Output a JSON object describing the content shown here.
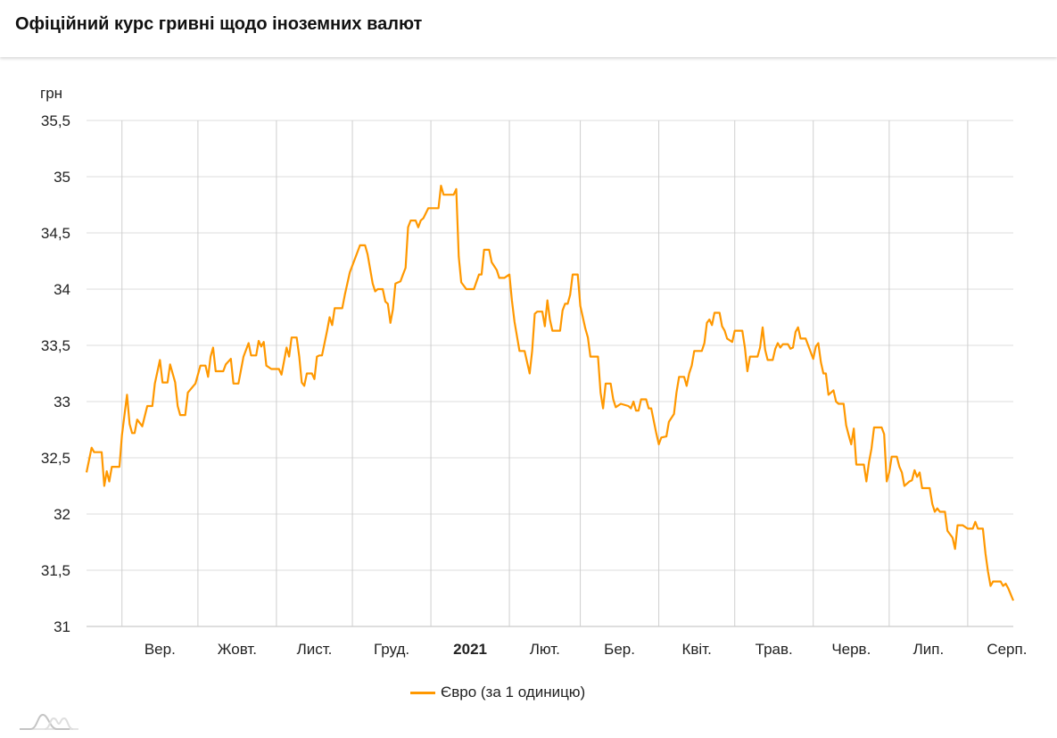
{
  "title": "Офіційний курс гривні щодо іноземних валют",
  "colors": {
    "series": "#ff9800",
    "grid": "#dcdcdc",
    "vgrid": "#cfcfcf"
  },
  "chart_data": {
    "type": "line",
    "title": "",
    "xlabel": "",
    "ylabel": "грн",
    "ylim": [
      31,
      35.5
    ],
    "xlim": [
      "2020-08-18",
      "2021-08-19"
    ],
    "grid": true,
    "legend_position": "bottom",
    "yticks": [
      "31",
      "31,5",
      "32",
      "32,5",
      "33",
      "33,5",
      "34",
      "34,5",
      "35",
      "35,5"
    ],
    "xticks": [
      {
        "label": "Вер.",
        "bold": false
      },
      {
        "label": "Жовт.",
        "bold": false
      },
      {
        "label": "Лист.",
        "bold": false
      },
      {
        "label": "Груд.",
        "bold": false
      },
      {
        "label": "2021",
        "bold": true
      },
      {
        "label": "Лют.",
        "bold": false
      },
      {
        "label": "Бер.",
        "bold": false
      },
      {
        "label": "Квіт.",
        "bold": false
      },
      {
        "label": "Трав.",
        "bold": false
      },
      {
        "label": "Черв.",
        "bold": false
      },
      {
        "label": "Лип.",
        "bold": false
      },
      {
        "label": "Серп.",
        "bold": false
      }
    ],
    "series": [
      {
        "name": "Євро (за 1 одиницю)",
        "points": [
          [
            "2020-08-18",
            32.37
          ],
          [
            "2020-08-20",
            32.59
          ],
          [
            "2020-08-21",
            32.55
          ],
          [
            "2020-08-24",
            32.55
          ],
          [
            "2020-08-25",
            32.25
          ],
          [
            "2020-08-26",
            32.38
          ],
          [
            "2020-08-27",
            32.29
          ],
          [
            "2020-08-28",
            32.42
          ],
          [
            "2020-08-31",
            32.42
          ],
          [
            "2020-09-01",
            32.7
          ],
          [
            "2020-09-03",
            33.06
          ],
          [
            "2020-09-04",
            32.8
          ],
          [
            "2020-09-05",
            32.72
          ],
          [
            "2020-09-06",
            32.72
          ],
          [
            "2020-09-07",
            32.84
          ],
          [
            "2020-09-09",
            32.78
          ],
          [
            "2020-09-11",
            32.96
          ],
          [
            "2020-09-13",
            32.96
          ],
          [
            "2020-09-14",
            33.16
          ],
          [
            "2020-09-16",
            33.37
          ],
          [
            "2020-09-17",
            33.17
          ],
          [
            "2020-09-19",
            33.17
          ],
          [
            "2020-09-20",
            33.33
          ],
          [
            "2020-09-22",
            33.17
          ],
          [
            "2020-09-23",
            32.96
          ],
          [
            "2020-09-24",
            32.88
          ],
          [
            "2020-09-26",
            32.88
          ],
          [
            "2020-09-27",
            33.08
          ],
          [
            "2020-09-30",
            33.16
          ],
          [
            "2020-10-02",
            33.32
          ],
          [
            "2020-10-04",
            33.32
          ],
          [
            "2020-10-05",
            33.22
          ],
          [
            "2020-10-06",
            33.4
          ],
          [
            "2020-10-07",
            33.48
          ],
          [
            "2020-10-08",
            33.27
          ],
          [
            "2020-10-11",
            33.27
          ],
          [
            "2020-10-12",
            33.33
          ],
          [
            "2020-10-14",
            33.38
          ],
          [
            "2020-10-15",
            33.16
          ],
          [
            "2020-10-17",
            33.16
          ],
          [
            "2020-10-19",
            33.4
          ],
          [
            "2020-10-21",
            33.52
          ],
          [
            "2020-10-22",
            33.41
          ],
          [
            "2020-10-24",
            33.41
          ],
          [
            "2020-10-25",
            33.54
          ],
          [
            "2020-10-26",
            33.49
          ],
          [
            "2020-10-27",
            33.53
          ],
          [
            "2020-10-28",
            33.32
          ],
          [
            "2020-10-30",
            33.29
          ],
          [
            "2020-11-02",
            33.29
          ],
          [
            "2020-11-03",
            33.24
          ],
          [
            "2020-11-05",
            33.48
          ],
          [
            "2020-11-06",
            33.4
          ],
          [
            "2020-11-07",
            33.57
          ],
          [
            "2020-11-09",
            33.57
          ],
          [
            "2020-11-10",
            33.4
          ],
          [
            "2020-11-11",
            33.17
          ],
          [
            "2020-11-12",
            33.14
          ],
          [
            "2020-11-13",
            33.25
          ],
          [
            "2020-11-15",
            33.25
          ],
          [
            "2020-11-16",
            33.2
          ],
          [
            "2020-11-17",
            33.4
          ],
          [
            "2020-11-18",
            33.41
          ],
          [
            "2020-11-19",
            33.41
          ],
          [
            "2020-11-21",
            33.63
          ],
          [
            "2020-11-22",
            33.75
          ],
          [
            "2020-11-23",
            33.68
          ],
          [
            "2020-11-24",
            33.83
          ],
          [
            "2020-11-27",
            33.83
          ],
          [
            "2020-11-28",
            33.95
          ],
          [
            "2020-11-30",
            34.15
          ],
          [
            "2020-12-02",
            34.27
          ],
          [
            "2020-12-04",
            34.39
          ],
          [
            "2020-12-06",
            34.39
          ],
          [
            "2020-12-07",
            34.31
          ],
          [
            "2020-12-09",
            34.05
          ],
          [
            "2020-12-10",
            33.98
          ],
          [
            "2020-12-11",
            34.0
          ],
          [
            "2020-12-13",
            34.0
          ],
          [
            "2020-12-14",
            33.89
          ],
          [
            "2020-12-15",
            33.87
          ],
          [
            "2020-12-16",
            33.7
          ],
          [
            "2020-12-17",
            33.82
          ],
          [
            "2020-12-18",
            34.05
          ],
          [
            "2020-12-20",
            34.07
          ],
          [
            "2020-12-21",
            34.13
          ],
          [
            "2020-12-22",
            34.19
          ],
          [
            "2020-12-23",
            34.55
          ],
          [
            "2020-12-24",
            34.61
          ],
          [
            "2020-12-26",
            34.61
          ],
          [
            "2020-12-27",
            34.55
          ],
          [
            "2020-12-28",
            34.61
          ],
          [
            "2020-12-29",
            34.63
          ],
          [
            "2020-12-31",
            34.72
          ],
          [
            "2021-01-04",
            34.72
          ],
          [
            "2021-01-05",
            34.92
          ],
          [
            "2021-01-06",
            34.84
          ],
          [
            "2021-01-10",
            34.84
          ],
          [
            "2021-01-11",
            34.89
          ],
          [
            "2021-01-12",
            34.29
          ],
          [
            "2021-01-13",
            34.06
          ],
          [
            "2021-01-15",
            34.0
          ],
          [
            "2021-01-18",
            34.0
          ],
          [
            "2021-01-20",
            34.13
          ],
          [
            "2021-01-21",
            34.13
          ],
          [
            "2021-01-22",
            34.35
          ],
          [
            "2021-01-24",
            34.35
          ],
          [
            "2021-01-25",
            34.24
          ],
          [
            "2021-01-27",
            34.17
          ],
          [
            "2021-01-28",
            34.1
          ],
          [
            "2021-01-30",
            34.1
          ],
          [
            "2021-02-01",
            34.13
          ],
          [
            "2021-02-02",
            33.9
          ],
          [
            "2021-02-03",
            33.71
          ],
          [
            "2021-02-05",
            33.45
          ],
          [
            "2021-02-07",
            33.45
          ],
          [
            "2021-02-09",
            33.25
          ],
          [
            "2021-02-10",
            33.45
          ],
          [
            "2021-02-11",
            33.78
          ],
          [
            "2021-02-12",
            33.8
          ],
          [
            "2021-02-14",
            33.8
          ],
          [
            "2021-02-15",
            33.67
          ],
          [
            "2021-02-16",
            33.9
          ],
          [
            "2021-02-17",
            33.73
          ],
          [
            "2021-02-18",
            33.63
          ],
          [
            "2021-02-21",
            33.63
          ],
          [
            "2021-02-22",
            33.81
          ],
          [
            "2021-02-23",
            33.87
          ],
          [
            "2021-02-24",
            33.87
          ],
          [
            "2021-02-25",
            33.95
          ],
          [
            "2021-02-26",
            34.13
          ],
          [
            "2021-02-28",
            34.13
          ],
          [
            "2021-03-01",
            33.85
          ],
          [
            "2021-03-03",
            33.65
          ],
          [
            "2021-03-04",
            33.57
          ],
          [
            "2021-03-05",
            33.4
          ],
          [
            "2021-03-08",
            33.4
          ],
          [
            "2021-03-09",
            33.08
          ],
          [
            "2021-03-10",
            32.94
          ],
          [
            "2021-03-11",
            33.16
          ],
          [
            "2021-03-13",
            33.16
          ],
          [
            "2021-03-14",
            33.02
          ],
          [
            "2021-03-15",
            32.95
          ],
          [
            "2021-03-17",
            32.98
          ],
          [
            "2021-03-20",
            32.96
          ],
          [
            "2021-03-21",
            32.94
          ],
          [
            "2021-03-22",
            33.0
          ],
          [
            "2021-03-23",
            32.92
          ],
          [
            "2021-03-24",
            32.92
          ],
          [
            "2021-03-25",
            33.02
          ],
          [
            "2021-03-27",
            33.02
          ],
          [
            "2021-03-28",
            32.94
          ],
          [
            "2021-03-29",
            32.94
          ],
          [
            "2021-03-31",
            32.72
          ],
          [
            "2021-04-01",
            32.62
          ],
          [
            "2021-04-02",
            32.68
          ],
          [
            "2021-04-04",
            32.69
          ],
          [
            "2021-04-05",
            32.82
          ],
          [
            "2021-04-07",
            32.89
          ],
          [
            "2021-04-08",
            33.08
          ],
          [
            "2021-04-09",
            33.22
          ],
          [
            "2021-04-11",
            33.22
          ],
          [
            "2021-04-12",
            33.14
          ],
          [
            "2021-04-13",
            33.25
          ],
          [
            "2021-04-14",
            33.32
          ],
          [
            "2021-04-15",
            33.45
          ],
          [
            "2021-04-18",
            33.45
          ],
          [
            "2021-04-19",
            33.52
          ],
          [
            "2021-04-20",
            33.7
          ],
          [
            "2021-04-21",
            33.73
          ],
          [
            "2021-04-22",
            33.68
          ],
          [
            "2021-04-23",
            33.79
          ],
          [
            "2021-04-25",
            33.79
          ],
          [
            "2021-04-26",
            33.67
          ],
          [
            "2021-04-27",
            33.63
          ],
          [
            "2021-04-28",
            33.56
          ],
          [
            "2021-04-30",
            33.53
          ],
          [
            "2021-05-01",
            33.63
          ],
          [
            "2021-05-04",
            33.63
          ],
          [
            "2021-05-05",
            33.48
          ],
          [
            "2021-05-06",
            33.27
          ],
          [
            "2021-05-07",
            33.4
          ],
          [
            "2021-05-10",
            33.4
          ],
          [
            "2021-05-11",
            33.48
          ],
          [
            "2021-05-12",
            33.66
          ],
          [
            "2021-05-13",
            33.46
          ],
          [
            "2021-05-14",
            33.37
          ],
          [
            "2021-05-16",
            33.37
          ],
          [
            "2021-05-17",
            33.47
          ],
          [
            "2021-05-18",
            33.52
          ],
          [
            "2021-05-19",
            33.48
          ],
          [
            "2021-05-20",
            33.51
          ],
          [
            "2021-05-22",
            33.51
          ],
          [
            "2021-05-23",
            33.47
          ],
          [
            "2021-05-24",
            33.48
          ],
          [
            "2021-05-25",
            33.62
          ],
          [
            "2021-05-26",
            33.66
          ],
          [
            "2021-05-27",
            33.56
          ],
          [
            "2021-05-29",
            33.56
          ],
          [
            "2021-06-01",
            33.38
          ],
          [
            "2021-06-02",
            33.49
          ],
          [
            "2021-06-03",
            33.52
          ],
          [
            "2021-06-04",
            33.35
          ],
          [
            "2021-06-05",
            33.25
          ],
          [
            "2021-06-06",
            33.25
          ],
          [
            "2021-06-07",
            33.06
          ],
          [
            "2021-06-08",
            33.08
          ],
          [
            "2021-06-09",
            33.1
          ],
          [
            "2021-06-10",
            33.0
          ],
          [
            "2021-06-11",
            32.98
          ],
          [
            "2021-06-13",
            32.98
          ],
          [
            "2021-06-14",
            32.79
          ],
          [
            "2021-06-15",
            32.7
          ],
          [
            "2021-06-16",
            32.62
          ],
          [
            "2021-06-17",
            32.76
          ],
          [
            "2021-06-18",
            32.44
          ],
          [
            "2021-06-21",
            32.44
          ],
          [
            "2021-06-22",
            32.29
          ],
          [
            "2021-06-23",
            32.46
          ],
          [
            "2021-06-24",
            32.58
          ],
          [
            "2021-06-25",
            32.77
          ],
          [
            "2021-06-28",
            32.77
          ],
          [
            "2021-06-29",
            32.71
          ],
          [
            "2021-06-30",
            32.29
          ],
          [
            "2021-07-01",
            32.37
          ],
          [
            "2021-07-02",
            32.51
          ],
          [
            "2021-07-04",
            32.51
          ],
          [
            "2021-07-05",
            32.42
          ],
          [
            "2021-07-06",
            32.37
          ],
          [
            "2021-07-07",
            32.25
          ],
          [
            "2021-07-09",
            32.29
          ],
          [
            "2021-07-10",
            32.3
          ],
          [
            "2021-07-11",
            32.39
          ],
          [
            "2021-07-12",
            32.33
          ],
          [
            "2021-07-13",
            32.37
          ],
          [
            "2021-07-14",
            32.23
          ],
          [
            "2021-07-17",
            32.23
          ],
          [
            "2021-07-18",
            32.09
          ],
          [
            "2021-07-19",
            32.02
          ],
          [
            "2021-07-20",
            32.05
          ],
          [
            "2021-07-21",
            32.02
          ],
          [
            "2021-07-23",
            32.02
          ],
          [
            "2021-07-24",
            31.85
          ],
          [
            "2021-07-26",
            31.79
          ],
          [
            "2021-07-27",
            31.69
          ],
          [
            "2021-07-28",
            31.9
          ],
          [
            "2021-07-30",
            31.9
          ],
          [
            "2021-08-01",
            31.87
          ],
          [
            "2021-08-03",
            31.87
          ],
          [
            "2021-08-04",
            31.93
          ],
          [
            "2021-08-05",
            31.87
          ],
          [
            "2021-08-07",
            31.87
          ],
          [
            "2021-08-08",
            31.65
          ],
          [
            "2021-08-09",
            31.49
          ],
          [
            "2021-08-10",
            31.36
          ],
          [
            "2021-08-11",
            31.4
          ],
          [
            "2021-08-14",
            31.4
          ],
          [
            "2021-08-15",
            31.36
          ],
          [
            "2021-08-16",
            31.38
          ],
          [
            "2021-08-17",
            31.34
          ],
          [
            "2021-08-19",
            31.23
          ]
        ]
      }
    ]
  }
}
